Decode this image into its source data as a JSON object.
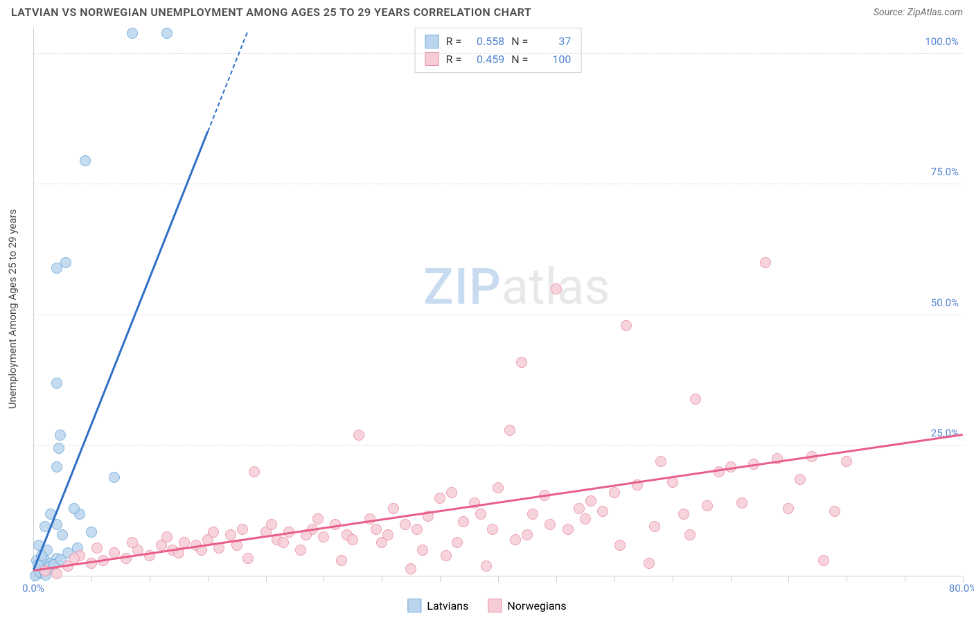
{
  "title": "LATVIAN VS NORWEGIAN UNEMPLOYMENT AMONG AGES 25 TO 29 YEARS CORRELATION CHART",
  "source": "Source: ZipAtlas.com",
  "y_axis_label": "Unemployment Among Ages 25 to 29 years",
  "chart": {
    "type": "scatter",
    "background_color": "#ffffff",
    "grid_color": "#d8d8d8",
    "axis_color": "#d0d0d0",
    "xlim": [
      0,
      80
    ],
    "ylim": [
      0,
      105
    ],
    "x_ticks_minor_step": 5,
    "x_ticks": [
      {
        "v": 0,
        "label": "0.0%"
      },
      {
        "v": 80,
        "label": "80.0%"
      }
    ],
    "y_ticks": [
      {
        "v": 25,
        "label": "25.0%"
      },
      {
        "v": 50,
        "label": "50.0%"
      },
      {
        "v": 75,
        "label": "75.0%"
      },
      {
        "v": 100,
        "label": "100.0%"
      }
    ],
    "tick_label_color": "#4f81d1",
    "series": [
      {
        "name": "Latvians",
        "fill": "#bcd5ee",
        "stroke": "#6faadc",
        "line_color": "#2f6fc7",
        "R": "0.558",
        "N": "37",
        "trend": {
          "x1": 0,
          "y1": 1,
          "x2": 15,
          "y2": 85,
          "dash_to_y": 104
        },
        "points": [
          [
            0.5,
            0.5
          ],
          [
            0.8,
            1.5
          ],
          [
            1.0,
            2.0
          ],
          [
            1.0,
            3.0
          ],
          [
            0.3,
            3.0
          ],
          [
            1.5,
            2.5
          ],
          [
            2.0,
            3.5
          ],
          [
            2.0,
            10.0
          ],
          [
            1.2,
            5.0
          ],
          [
            0.5,
            6.0
          ],
          [
            1.0,
            9.5
          ],
          [
            2.5,
            8.0
          ],
          [
            4.0,
            12.0
          ],
          [
            7.0,
            19.0
          ],
          [
            3.5,
            13.0
          ],
          [
            1.5,
            12.0
          ],
          [
            2.0,
            21.0
          ],
          [
            2.2,
            24.5
          ],
          [
            2.3,
            27.0
          ],
          [
            2.0,
            37.0
          ],
          [
            2.0,
            59.0
          ],
          [
            2.8,
            60.0
          ],
          [
            4.5,
            79.5
          ],
          [
            8.5,
            104.0
          ],
          [
            11.5,
            104.0
          ],
          [
            0.2,
            0.2
          ],
          [
            0.6,
            0.8
          ],
          [
            0.9,
            1.2
          ],
          [
            1.4,
            1.8
          ],
          [
            1.8,
            2.2
          ],
          [
            2.4,
            3.2
          ],
          [
            3.0,
            4.5
          ],
          [
            3.8,
            5.5
          ],
          [
            5.0,
            8.5
          ],
          [
            1.1,
            0.3
          ],
          [
            0.4,
            2.2
          ],
          [
            0.7,
            4.0
          ]
        ]
      },
      {
        "name": "Norwegians",
        "fill": "#f6cdd7",
        "stroke": "#e98fa8",
        "line_color": "#e85d8a",
        "R": "0.459",
        "N": "100",
        "trend": {
          "x1": 0,
          "y1": 1,
          "x2": 80,
          "y2": 27
        },
        "points": [
          [
            1,
            1
          ],
          [
            2,
            0.5
          ],
          [
            3,
            2
          ],
          [
            4,
            4
          ],
          [
            5,
            2.5
          ],
          [
            6,
            3
          ],
          [
            7,
            4.5
          ],
          [
            8,
            3.5
          ],
          [
            9,
            5
          ],
          [
            10,
            4
          ],
          [
            11,
            6
          ],
          [
            12,
            5
          ],
          [
            13,
            6.5
          ],
          [
            14,
            6
          ],
          [
            15,
            7
          ],
          [
            16,
            5.5
          ],
          [
            17,
            8
          ],
          [
            18,
            9
          ],
          [
            19,
            20
          ],
          [
            20,
            8.5
          ],
          [
            21,
            7
          ],
          [
            22,
            8.5
          ],
          [
            23,
            5
          ],
          [
            24,
            9
          ],
          [
            25,
            7.5
          ],
          [
            26,
            10
          ],
          [
            27,
            8
          ],
          [
            28,
            27
          ],
          [
            29,
            11
          ],
          [
            30,
            6.5
          ],
          [
            31,
            13
          ],
          [
            32,
            10
          ],
          [
            33,
            9
          ],
          [
            34,
            11.5
          ],
          [
            35,
            15
          ],
          [
            36,
            16
          ],
          [
            37,
            10.5
          ],
          [
            38,
            14
          ],
          [
            39,
            2
          ],
          [
            40,
            17
          ],
          [
            41,
            28
          ],
          [
            42,
            41
          ],
          [
            43,
            12
          ],
          [
            44,
            15.5
          ],
          [
            45,
            55
          ],
          [
            46,
            9
          ],
          [
            47,
            13
          ],
          [
            48,
            14.5
          ],
          [
            49,
            12.5
          ],
          [
            50,
            16
          ],
          [
            51,
            48
          ],
          [
            52,
            17.5
          ],
          [
            53,
            2.5
          ],
          [
            54,
            22
          ],
          [
            55,
            18
          ],
          [
            56,
            12
          ],
          [
            57,
            34
          ],
          [
            58,
            13.5
          ],
          [
            59,
            20
          ],
          [
            60,
            21
          ],
          [
            61,
            14
          ],
          [
            62,
            21.5
          ],
          [
            63,
            60
          ],
          [
            64,
            22.5
          ],
          [
            65,
            13
          ],
          [
            66,
            18.5
          ],
          [
            67,
            23
          ],
          [
            68,
            3
          ],
          [
            69,
            12.5
          ],
          [
            70,
            22
          ],
          [
            3.5,
            3.5
          ],
          [
            5.5,
            5.5
          ],
          [
            8.5,
            6.5
          ],
          [
            11.5,
            7.5
          ],
          [
            14.5,
            5.0
          ],
          [
            17.5,
            6.0
          ],
          [
            20.5,
            10.0
          ],
          [
            23.5,
            8.0
          ],
          [
            26.5,
            3.0
          ],
          [
            29.5,
            9.0
          ],
          [
            32.5,
            1.5
          ],
          [
            35.5,
            4.0
          ],
          [
            38.5,
            12.0
          ],
          [
            41.5,
            7.0
          ],
          [
            44.5,
            10.0
          ],
          [
            47.5,
            11.0
          ],
          [
            50.5,
            6.0
          ],
          [
            53.5,
            9.5
          ],
          [
            56.5,
            8.0
          ],
          [
            12.5,
            4.5
          ],
          [
            15.5,
            8.5
          ],
          [
            18.5,
            3.5
          ],
          [
            21.5,
            6.5
          ],
          [
            24.5,
            11.0
          ],
          [
            27.5,
            7.0
          ],
          [
            30.5,
            8.0
          ],
          [
            33.5,
            5.0
          ],
          [
            36.5,
            6.5
          ],
          [
            39.5,
            9.0
          ],
          [
            42.5,
            8.0
          ]
        ]
      }
    ]
  },
  "watermark": {
    "part1": "ZIP",
    "part2": "atlas"
  },
  "legend": {
    "item1_label": "Latvians",
    "item2_label": "Norwegians"
  },
  "stats_labels": {
    "R": "R =",
    "N": "N ="
  }
}
